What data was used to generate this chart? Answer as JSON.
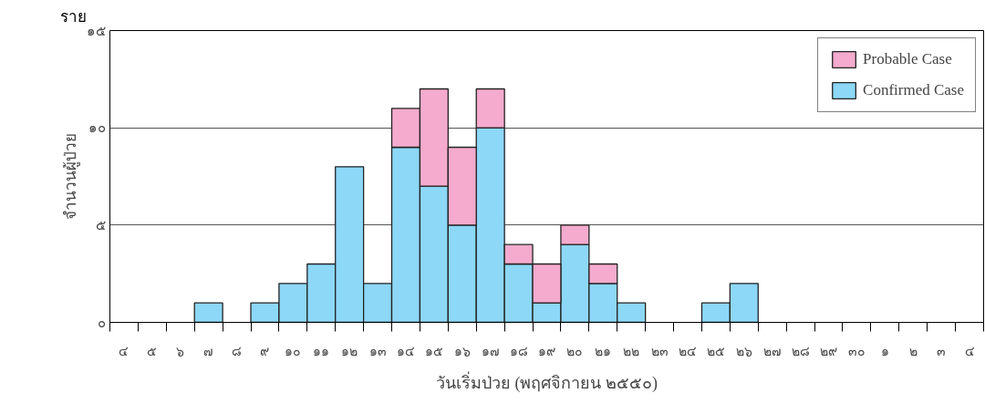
{
  "chart_data": {
    "type": "bar",
    "stacked": true,
    "xlabel": "วันเริ่มป่วย (พฤศจิกายน ๒๕๕๐)",
    "ylabel": "จำนวนผู้ป่วย",
    "annotations": [
      "ราย"
    ],
    "categories": [
      "๔",
      "๕",
      "๖",
      "๗",
      "๘",
      "๙",
      "๑๐",
      "๑๑",
      "๑๒",
      "๑๓",
      "๑๔",
      "๑๕",
      "๑๖",
      "๑๗",
      "๑๘",
      "๑๙",
      "๒๐",
      "๒๑",
      "๒๒",
      "๒๓",
      "๒๔",
      "๒๕",
      "๒๖",
      "๒๗",
      "๒๘",
      "๒๙",
      "๓๐",
      "๑",
      "๒",
      "๓",
      "๔"
    ],
    "series": [
      {
        "name": "Confirmed Case",
        "color": "#8dd7f7",
        "values": [
          0,
          0,
          0,
          1,
          0,
          1,
          2,
          3,
          8,
          2,
          9,
          7,
          5,
          10,
          3,
          1,
          4,
          2,
          1,
          0,
          0,
          1,
          2,
          0,
          0,
          0,
          0,
          0,
          0,
          0,
          0
        ]
      },
      {
        "name": "Probable Case",
        "color": "#f4abcd",
        "values": [
          0,
          0,
          0,
          0,
          0,
          0,
          0,
          0,
          0,
          0,
          2,
          5,
          4,
          2,
          1,
          2,
          1,
          1,
          0,
          0,
          0,
          0,
          0,
          0,
          0,
          0,
          0,
          0,
          0,
          0,
          0
        ]
      }
    ],
    "ylim": [
      0,
      15
    ],
    "yticks": [
      {
        "value": 0,
        "label": "๐"
      },
      {
        "value": 5,
        "label": "๕"
      },
      {
        "value": 10,
        "label": "๑๐"
      },
      {
        "value": 15,
        "label": "๑๕"
      }
    ],
    "grid": "y",
    "legend": "top right"
  }
}
